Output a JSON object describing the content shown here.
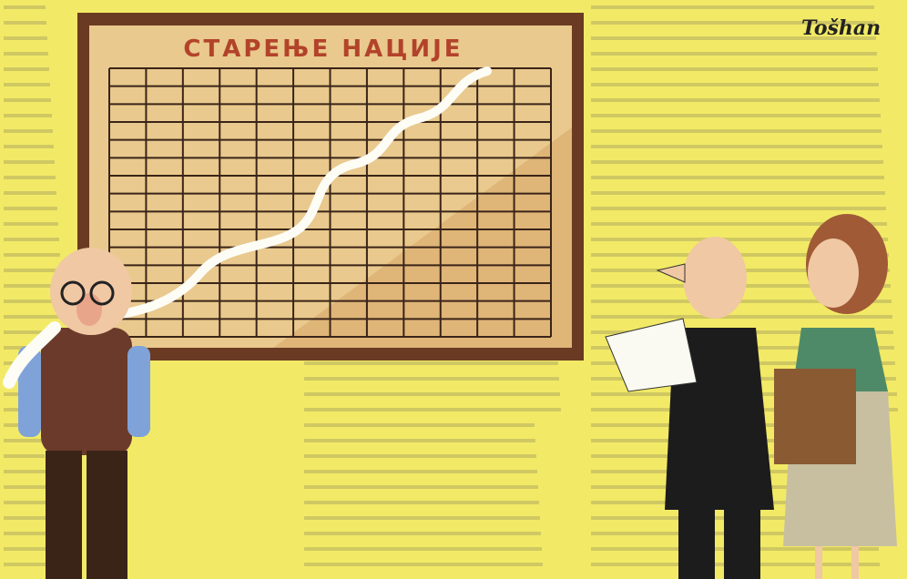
{
  "board": {
    "title": "СТАРЕЊЕ НАЦИЈЕ"
  },
  "signature": "Tošhan"
}
